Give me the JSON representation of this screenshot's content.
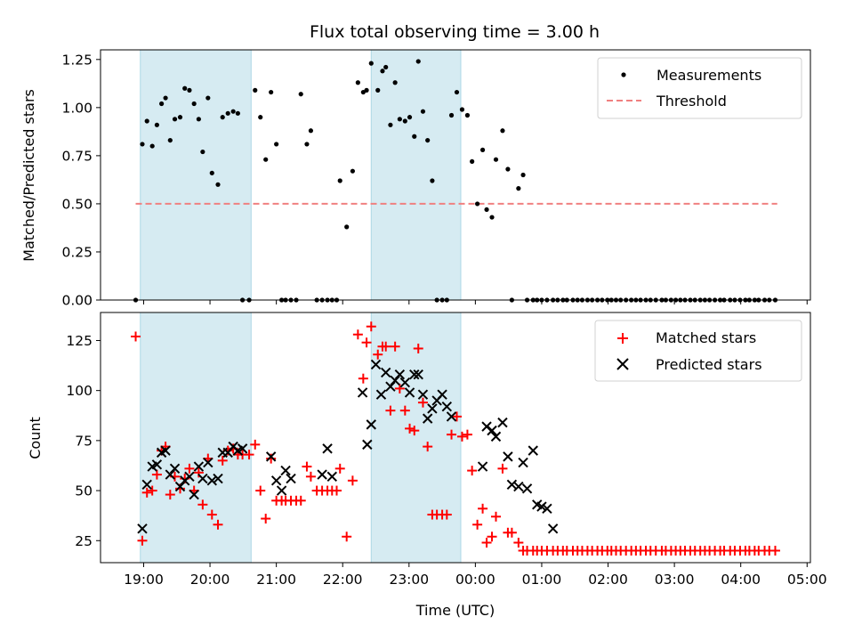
{
  "chart_data": [
    {
      "type": "scatter",
      "panel": "top",
      "title": "Flux total observing time = 3.00 h",
      "xlabel": "",
      "ylabel": "Matched/Predicted stars",
      "xlim": [
        18.35,
        29.05
      ],
      "ylim": [
        0,
        1.3
      ],
      "yticks": [
        0.0,
        0.25,
        0.5,
        0.75,
        1.0,
        1.25
      ],
      "ytick_labels": [
        "0.00",
        "0.25",
        "0.50",
        "0.75",
        "1.00",
        "1.25"
      ],
      "shaded_intervals": [
        [
          18.95,
          20.62
        ],
        [
          22.43,
          23.78
        ]
      ],
      "shade_color": "#add8e6",
      "threshold": {
        "name": "Threshold",
        "value": 0.5,
        "x_range": [
          18.88,
          28.55
        ],
        "color": "#f08080"
      },
      "legend": [
        {
          "label": "Measurements",
          "marker": "dot",
          "color": "#000000"
        },
        {
          "label": "Threshold",
          "marker": "dashed-line",
          "color": "#f08080"
        }
      ],
      "series": [
        {
          "name": "Measurements",
          "color": "#000000",
          "x": [
            18.88,
            18.98,
            19.05,
            19.13,
            19.2,
            19.27,
            19.33,
            19.4,
            19.47,
            19.55,
            19.62,
            19.69,
            19.76,
            19.83,
            19.89,
            19.97,
            20.03,
            20.12,
            20.19,
            20.27,
            20.35,
            20.42,
            20.49,
            20.59,
            20.68,
            20.76,
            20.84,
            20.92,
            21.0,
            21.08,
            21.14,
            21.22,
            21.3,
            21.37,
            21.46,
            21.52,
            21.61,
            21.69,
            21.77,
            21.84,
            21.91,
            21.96,
            22.06,
            22.15,
            22.23,
            22.31,
            22.36,
            22.43,
            22.53,
            22.6,
            22.65,
            22.72,
            22.79,
            22.86,
            22.94,
            23.01,
            23.08,
            23.14,
            23.21,
            23.28,
            23.35,
            23.42,
            23.5,
            23.57,
            23.64,
            23.72,
            23.8,
            23.88,
            23.95,
            24.03,
            24.11,
            24.17,
            24.25,
            24.31,
            24.41,
            24.49,
            24.55,
            24.65,
            24.72,
            24.78,
            24.87,
            24.93,
            25.0,
            25.08,
            25.17,
            25.24,
            25.32,
            25.38,
            25.47,
            25.54,
            25.61,
            25.69,
            25.76,
            25.84,
            25.91,
            25.99,
            26.05,
            26.12,
            26.19,
            26.27,
            26.35,
            26.42,
            26.49,
            26.57,
            26.64,
            26.72,
            26.81,
            26.87,
            26.95,
            27.02,
            27.09,
            27.16,
            27.24,
            27.31,
            27.39,
            27.46,
            27.53,
            27.61,
            27.69,
            27.75,
            27.84,
            27.91,
            27.99,
            28.07,
            28.13,
            28.21,
            28.27,
            28.36,
            28.43,
            28.52
          ],
          "y": [
            0.0,
            0.81,
            0.93,
            0.8,
            0.91,
            1.02,
            1.05,
            0.83,
            0.94,
            0.95,
            1.1,
            1.09,
            1.02,
            0.94,
            0.77,
            1.05,
            0.66,
            0.6,
            0.95,
            0.97,
            0.98,
            0.97,
            0.0,
            0.0,
            1.09,
            0.95,
            0.73,
            1.08,
            0.81,
            0.0,
            0.0,
            0.0,
            0.0,
            1.07,
            0.81,
            0.88,
            0.0,
            0.0,
            0.0,
            0.0,
            0.0,
            0.62,
            0.38,
            0.67,
            1.13,
            1.08,
            1.09,
            1.23,
            1.09,
            1.19,
            1.21,
            0.91,
            1.13,
            0.94,
            0.93,
            0.95,
            0.85,
            1.24,
            0.98,
            0.83,
            0.62,
            0.0,
            0.0,
            0.0,
            0.96,
            1.08,
            0.99,
            0.96,
            0.72,
            0.5,
            0.78,
            0.47,
            0.43,
            0.73,
            0.88,
            0.68,
            0.0,
            0.58,
            0.65,
            0.0,
            0.0,
            0.0,
            0.0,
            0.0,
            0.0,
            0.0,
            0.0,
            0.0,
            0.0,
            0.0,
            0.0,
            0.0,
            0.0,
            0.0,
            0.0,
            0.0,
            0.0,
            0.0,
            0.0,
            0.0,
            0.0,
            0.0,
            0.0,
            0.0,
            0.0,
            0.0,
            0.0,
            0.0,
            0.0,
            0.0,
            0.0,
            0.0,
            0.0,
            0.0,
            0.0,
            0.0,
            0.0,
            0.0,
            0.0,
            0.0,
            0.0,
            0.0,
            0.0,
            0.0,
            0.0,
            0.0,
            0.0,
            0.0,
            0.0,
            0.0
          ]
        }
      ]
    },
    {
      "type": "scatter",
      "panel": "bottom",
      "title": "",
      "xlabel": "Time (UTC)",
      "ylabel": "Count",
      "xlim": [
        18.35,
        29.05
      ],
      "ylim": [
        14,
        139
      ],
      "xticks": [
        19,
        20,
        21,
        22,
        23,
        24,
        25,
        26,
        27,
        28,
        29
      ],
      "xtick_labels": [
        "19:00",
        "20:00",
        "21:00",
        "22:00",
        "23:00",
        "00:00",
        "01:00",
        "02:00",
        "03:00",
        "04:00",
        "05:00"
      ],
      "yticks": [
        25,
        50,
        75,
        100,
        125
      ],
      "ytick_labels": [
        "25",
        "50",
        "75",
        "100",
        "125"
      ],
      "shaded_intervals": [
        [
          18.95,
          20.62
        ],
        [
          22.43,
          23.78
        ]
      ],
      "shade_color": "#add8e6",
      "legend": [
        {
          "label": "Matched stars",
          "marker": "plus",
          "color": "#ff0000"
        },
        {
          "label": "Predicted stars",
          "marker": "x",
          "color": "#000000"
        }
      ],
      "series": [
        {
          "name": "Matched stars",
          "marker": "plus",
          "color": "#ff0000",
          "x": [
            18.88,
            18.98,
            19.05,
            19.13,
            19.2,
            19.27,
            19.33,
            19.4,
            19.47,
            19.55,
            19.62,
            19.69,
            19.76,
            19.83,
            19.89,
            19.97,
            20.03,
            20.12,
            20.19,
            20.27,
            20.35,
            20.42,
            20.49,
            20.59,
            20.68,
            20.76,
            20.84,
            20.92,
            21.0,
            21.08,
            21.14,
            21.22,
            21.3,
            21.37,
            21.46,
            21.52,
            21.61,
            21.69,
            21.77,
            21.84,
            21.91,
            21.96,
            22.06,
            22.15,
            22.23,
            22.31,
            22.36,
            22.43,
            22.53,
            22.6,
            22.65,
            22.72,
            22.79,
            22.86,
            22.94,
            23.01,
            23.08,
            23.14,
            23.21,
            23.28,
            23.35,
            23.42,
            23.5,
            23.57,
            23.64,
            23.72,
            23.8,
            23.88,
            23.95,
            24.03,
            24.11,
            24.17,
            24.25,
            24.31,
            24.41,
            24.49,
            24.55,
            24.65,
            24.72,
            24.78,
            24.87,
            24.93,
            25.0,
            25.08,
            25.17,
            25.24,
            25.32,
            25.38,
            25.47,
            25.54,
            25.61,
            25.69,
            25.76,
            25.84,
            25.91,
            25.99,
            26.05,
            26.12,
            26.19,
            26.27,
            26.35,
            26.42,
            26.49,
            26.57,
            26.64,
            26.72,
            26.81,
            26.87,
            26.95,
            27.02,
            27.09,
            27.16,
            27.24,
            27.31,
            27.39,
            27.46,
            27.53,
            27.61,
            27.69,
            27.75,
            27.84,
            27.91,
            27.99,
            28.07,
            28.13,
            28.21,
            28.27,
            28.36,
            28.43,
            28.52
          ],
          "y": [
            127,
            25,
            49,
            50,
            58,
            70,
            72,
            48,
            57,
            51,
            56,
            61,
            50,
            59,
            43,
            66,
            38,
            33,
            65,
            70,
            71,
            68,
            68,
            68,
            73,
            50,
            36,
            66,
            45,
            45,
            45,
            45,
            45,
            45,
            62,
            57,
            50,
            50,
            50,
            50,
            50,
            61,
            27,
            55,
            128,
            106,
            124,
            132,
            118,
            122,
            122,
            90,
            122,
            101,
            90,
            81,
            80,
            121,
            94,
            72,
            38,
            38,
            38,
            38,
            78,
            87,
            77,
            78,
            60,
            33,
            41,
            24,
            27,
            37,
            61,
            29,
            29,
            24,
            20,
            20,
            20,
            20,
            20,
            20,
            20,
            20,
            20,
            20,
            20,
            20,
            20,
            20,
            20,
            20,
            20,
            20,
            20,
            20,
            20,
            20,
            20,
            20,
            20,
            20,
            20,
            20,
            20,
            20,
            20,
            20,
            20,
            20,
            20,
            20,
            20,
            20,
            20,
            20,
            20,
            20,
            20,
            20,
            20,
            20,
            20,
            20,
            20,
            20,
            20,
            20
          ]
        },
        {
          "name": "Predicted stars",
          "marker": "x",
          "color": "#000000",
          "x": [
            18.98,
            19.05,
            19.13,
            19.2,
            19.27,
            19.33,
            19.4,
            19.47,
            19.55,
            19.62,
            19.69,
            19.76,
            19.83,
            19.89,
            19.97,
            20.03,
            20.12,
            20.19,
            20.27,
            20.35,
            20.42,
            20.49,
            20.92,
            21.0,
            21.08,
            21.14,
            21.22,
            21.69,
            21.77,
            21.84,
            22.3,
            22.37,
            22.43,
            22.5,
            22.58,
            22.65,
            22.72,
            22.79,
            22.86,
            22.94,
            23.01,
            23.08,
            23.14,
            23.21,
            23.28,
            23.35,
            23.42,
            23.5,
            23.57,
            23.64,
            24.11,
            24.17,
            24.25,
            24.31,
            24.41,
            24.49,
            24.55,
            24.65,
            24.72,
            24.78,
            24.87,
            24.93,
            25.0,
            25.08,
            25.17
          ],
          "y": [
            31,
            53,
            62,
            63,
            69,
            70,
            58,
            61,
            52,
            55,
            57,
            48,
            62,
            56,
            64,
            55,
            56,
            69,
            69,
            72,
            70,
            71,
            67,
            55,
            50,
            60,
            56,
            58,
            71,
            57,
            99,
            73,
            83,
            113,
            98,
            109,
            102,
            105,
            108,
            104,
            99,
            108,
            108,
            98,
            86,
            91,
            95,
            98,
            92,
            87,
            62,
            82,
            80,
            77,
            84,
            67,
            53,
            52,
            64,
            51,
            70,
            43,
            42,
            41,
            31
          ]
        }
      ]
    }
  ]
}
